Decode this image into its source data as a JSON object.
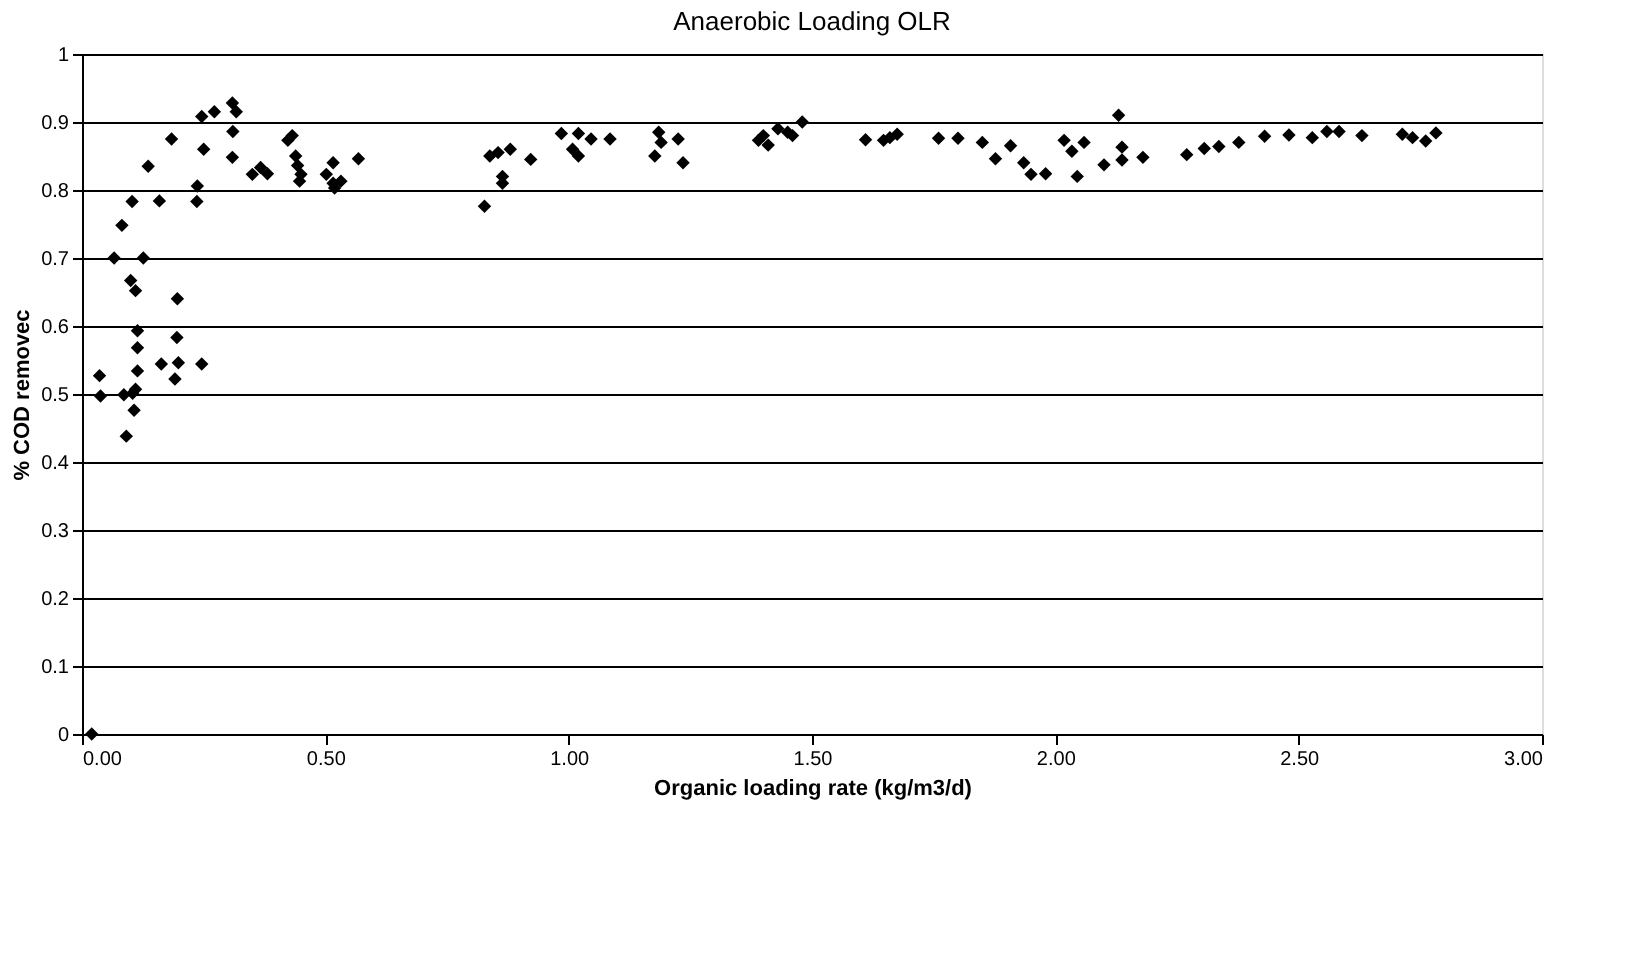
{
  "chart_data": {
    "type": "scatter",
    "title": "Anaerobic Loading OLR",
    "xlabel": "Organic loading rate (kg/m3/d)",
    "ylabel": "% COD removec",
    "xlim": [
      0,
      3
    ],
    "xticks": [
      {
        "value": 0,
        "label": "0.00"
      },
      {
        "value": 0.5,
        "label": "0.50"
      },
      {
        "value": 1,
        "label": "1.00"
      },
      {
        "value": 1.5,
        "label": "1.50"
      },
      {
        "value": 2,
        "label": "2.00"
      },
      {
        "value": 2.5,
        "label": "2.50"
      },
      {
        "value": 3,
        "label": "3.00"
      }
    ],
    "ylim": [
      0,
      1
    ],
    "yticks": [
      0,
      0.1,
      0.2,
      0.3,
      0.4,
      0.5,
      0.6,
      0.7,
      0.8,
      0.9,
      1
    ],
    "grid": "y",
    "marker": "diamond",
    "series": [
      {
        "color": "#000000",
        "x": [
          0.02,
          0.036,
          0.038,
          0.091,
          0.086,
          0.104,
          0.107,
          0.11,
          0.114,
          0.114,
          0.114,
          0.1,
          0.11,
          0.066,
          0.126,
          0.082,
          0.103,
          0.136,
          0.159,
          0.163,
          0.191,
          0.198,
          0.195,
          0.196,
          0.184,
          0.236,
          0.237,
          0.246,
          0.25,
          0.246,
          0.272,
          0.309,
          0.317,
          0.31,
          0.309,
          0.35,
          0.367,
          0.381,
          0.423,
          0.432,
          0.439,
          0.443,
          0.45,
          0.447,
          0.502,
          0.516,
          0.516,
          0.519,
          0.532,
          0.568,
          0.827,
          0.838,
          0.855,
          0.864,
          0.864,
          0.88,
          0.922,
          0.985,
          1.008,
          1.02,
          1.02,
          1.046,
          1.085,
          1.185,
          1.177,
          1.19,
          1.225,
          1.235,
          1.39,
          1.41,
          1.4,
          1.43,
          1.45,
          1.46,
          1.48,
          1.61,
          1.647,
          1.66,
          1.675,
          1.76,
          1.8,
          1.85,
          1.877,
          1.908,
          1.935,
          1.95,
          1.98,
          2.018,
          2.034,
          2.059,
          2.045,
          2.1,
          2.13,
          2.137,
          2.137,
          2.18,
          2.27,
          2.306,
          2.336,
          2.377,
          2.43,
          2.48,
          2.528,
          2.558,
          2.583,
          2.63,
          2.713,
          2.734,
          2.761,
          2.782
        ],
        "values": [
          0,
          0.527,
          0.497,
          0.438,
          0.499,
          0.501,
          0.476,
          0.507,
          0.534,
          0.568,
          0.593,
          0.667,
          0.652,
          0.7,
          0.7,
          0.748,
          0.783,
          0.835,
          0.784,
          0.544,
          0.522,
          0.546,
          0.583,
          0.64,
          0.875,
          0.783,
          0.806,
          0.544,
          0.86,
          0.908,
          0.915,
          0.928,
          0.915,
          0.886,
          0.848,
          0.823,
          0.833,
          0.824,
          0.873,
          0.88,
          0.85,
          0.836,
          0.823,
          0.813,
          0.823,
          0.84,
          0.81,
          0.803,
          0.813,
          0.846,
          0.776,
          0.85,
          0.855,
          0.82,
          0.81,
          0.86,
          0.845,
          0.883,
          0.86,
          0.883,
          0.85,
          0.875,
          0.875,
          0.885,
          0.85,
          0.87,
          0.875,
          0.84,
          0.873,
          0.866,
          0.88,
          0.89,
          0.885,
          0.88,
          0.9,
          0.874,
          0.873,
          0.877,
          0.882,
          0.876,
          0.876,
          0.87,
          0.846,
          0.865,
          0.84,
          0.823,
          0.824,
          0.873,
          0.857,
          0.87,
          0.82,
          0.837,
          0.91,
          0.863,
          0.844,
          0.848,
          0.852,
          0.861,
          0.864,
          0.87,
          0.879,
          0.881,
          0.877,
          0.886,
          0.886,
          0.88,
          0.882,
          0.877,
          0.872,
          0.884
        ]
      }
    ]
  }
}
